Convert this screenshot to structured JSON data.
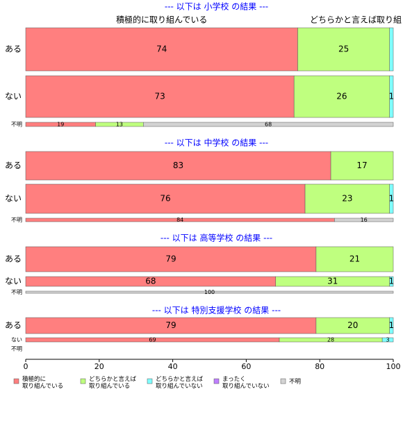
{
  "chart_data": {
    "type": "stacked-bar",
    "series": [
      {
        "name": "積極的に\n取り組んでいる",
        "color": "#ff7f7f"
      },
      {
        "name": "どちらかと言えば\n取り組んでいる",
        "color": "#bfff7f"
      },
      {
        "name": "どちらかと言えば\n取り組んでいない",
        "color": "#7fffff"
      },
      {
        "name": "まったく\n取り組んでいない",
        "color": "#bf7fff"
      },
      {
        "name": "不明",
        "color": "#d3d3d3"
      }
    ],
    "headers": [
      "積極的に取り組んでいる",
      "どちらかと言えば取り組"
    ],
    "xlim": [
      0,
      100
    ],
    "xticks": [
      0,
      20,
      40,
      60,
      80,
      100
    ],
    "panels": [
      {
        "title": "--- 以下は 小学校 の結果 ---",
        "rows": [
          {
            "label": "ある",
            "values": [
              74,
              25,
              1,
              0,
              0
            ],
            "value_labels": [
              "74",
              "25",
              null,
              null,
              null
            ]
          },
          {
            "label": "ない",
            "values": [
              73,
              26,
              1,
              0,
              0
            ],
            "value_labels": [
              "73",
              "26",
              "1",
              null,
              null
            ]
          },
          {
            "label": "不明",
            "values": [
              19,
              13,
              0,
              0,
              68
            ],
            "value_labels": [
              "19",
              "13",
              null,
              null,
              "68"
            ]
          }
        ]
      },
      {
        "title": "--- 以下は 中学校 の結果 ---",
        "rows": [
          {
            "label": "ある",
            "values": [
              83,
              17,
              0,
              0,
              0
            ],
            "value_labels": [
              "83",
              "17",
              null,
              null,
              null
            ]
          },
          {
            "label": "ない",
            "values": [
              76,
              23,
              1,
              0,
              0
            ],
            "value_labels": [
              "76",
              "23",
              "1",
              null,
              null
            ]
          },
          {
            "label": "不明",
            "values": [
              84,
              0,
              0,
              0,
              16
            ],
            "value_labels": [
              "84",
              null,
              null,
              null,
              "16"
            ]
          }
        ]
      },
      {
        "title": "--- 以下は 高等学校 の結果 ---",
        "rows": [
          {
            "label": "ある",
            "values": [
              79,
              21,
              0,
              0,
              0
            ],
            "value_labels": [
              "79",
              "21",
              null,
              null,
              null
            ]
          },
          {
            "label": "ない",
            "values": [
              68,
              31,
              1,
              0,
              0
            ],
            "value_labels": [
              "68",
              "31",
              "1",
              null,
              null
            ]
          },
          {
            "label": "不明",
            "values": [
              0,
              0,
              0,
              0,
              100
            ],
            "value_labels": [
              null,
              null,
              null,
              null,
              "100"
            ]
          }
        ]
      },
      {
        "title": "--- 以下は 特別支援学校 の結果 ---",
        "rows": [
          {
            "label": "ある",
            "values": [
              79,
              20,
              1,
              0,
              0
            ],
            "value_labels": [
              "79",
              "20",
              "1",
              null,
              null
            ]
          },
          {
            "label": "ない",
            "values": [
              69,
              28,
              3,
              0,
              0
            ],
            "value_labels": [
              "69",
              "28",
              "3",
              null,
              null
            ]
          },
          {
            "label": "不明",
            "values": [
              0,
              0,
              0,
              0,
              0
            ],
            "value_labels": [
              null,
              null,
              null,
              null,
              null
            ]
          }
        ]
      }
    ]
  }
}
